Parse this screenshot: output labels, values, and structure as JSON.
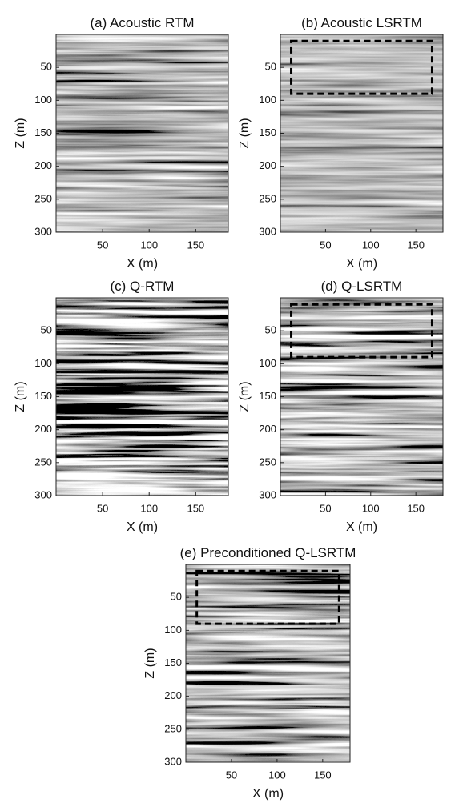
{
  "chart_data": [
    {
      "type": "image",
      "title": "(a) Acoustic RTM",
      "xlabel": "X (m)",
      "ylabel": "Z (m)",
      "colormap": "gray",
      "contrast": 1.0,
      "xlim": [
        0,
        185
      ],
      "ylim": [
        0,
        300
      ],
      "y_reversed": true,
      "xticks": [
        50,
        100,
        150
      ],
      "yticks": [
        50,
        100,
        150,
        200,
        250,
        300
      ]
    },
    {
      "type": "image",
      "title": "(b) Acoustic LSRTM",
      "xlabel": "X (m)",
      "ylabel": "Z (m)",
      "colormap": "gray",
      "contrast": 0.8,
      "xlim": [
        0,
        180
      ],
      "ylim": [
        0,
        300
      ],
      "y_reversed": true,
      "xticks": [
        50,
        100,
        150
      ],
      "yticks": [
        50,
        100,
        150,
        200,
        250,
        300
      ],
      "highlight_box": {
        "xlim": [
          12,
          168
        ],
        "ylim": [
          10,
          90
        ]
      }
    },
    {
      "type": "image",
      "title": "(c) Q-RTM",
      "xlabel": "X (m)",
      "ylabel": "Z (m)",
      "colormap": "gray",
      "contrast": 2.2,
      "xlim": [
        0,
        185
      ],
      "ylim": [
        0,
        300
      ],
      "y_reversed": true,
      "xticks": [
        50,
        100,
        150
      ],
      "yticks": [
        50,
        100,
        150,
        200,
        250,
        300
      ]
    },
    {
      "type": "image",
      "title": "(d) Q-LSRTM",
      "xlabel": "X (m)",
      "ylabel": "Z (m)",
      "colormap": "gray",
      "contrast": 1.4,
      "xlim": [
        0,
        180
      ],
      "ylim": [
        0,
        300
      ],
      "y_reversed": true,
      "xticks": [
        50,
        100,
        150
      ],
      "yticks": [
        50,
        100,
        150,
        200,
        250,
        300
      ],
      "highlight_box": {
        "xlim": [
          12,
          168
        ],
        "ylim": [
          10,
          90
        ]
      }
    },
    {
      "type": "image",
      "title": "(e) Preconditioned Q-LSRTM",
      "xlabel": "X (m)",
      "ylabel": "Z (m)",
      "colormap": "gray",
      "contrast": 1.4,
      "xlim": [
        0,
        180
      ],
      "ylim": [
        0,
        300
      ],
      "y_reversed": true,
      "xticks": [
        50,
        100,
        150
      ],
      "yticks": [
        50,
        100,
        150,
        200,
        250,
        300
      ],
      "highlight_box": {
        "xlim": [
          12,
          168
        ],
        "ylim": [
          10,
          90
        ]
      }
    }
  ]
}
